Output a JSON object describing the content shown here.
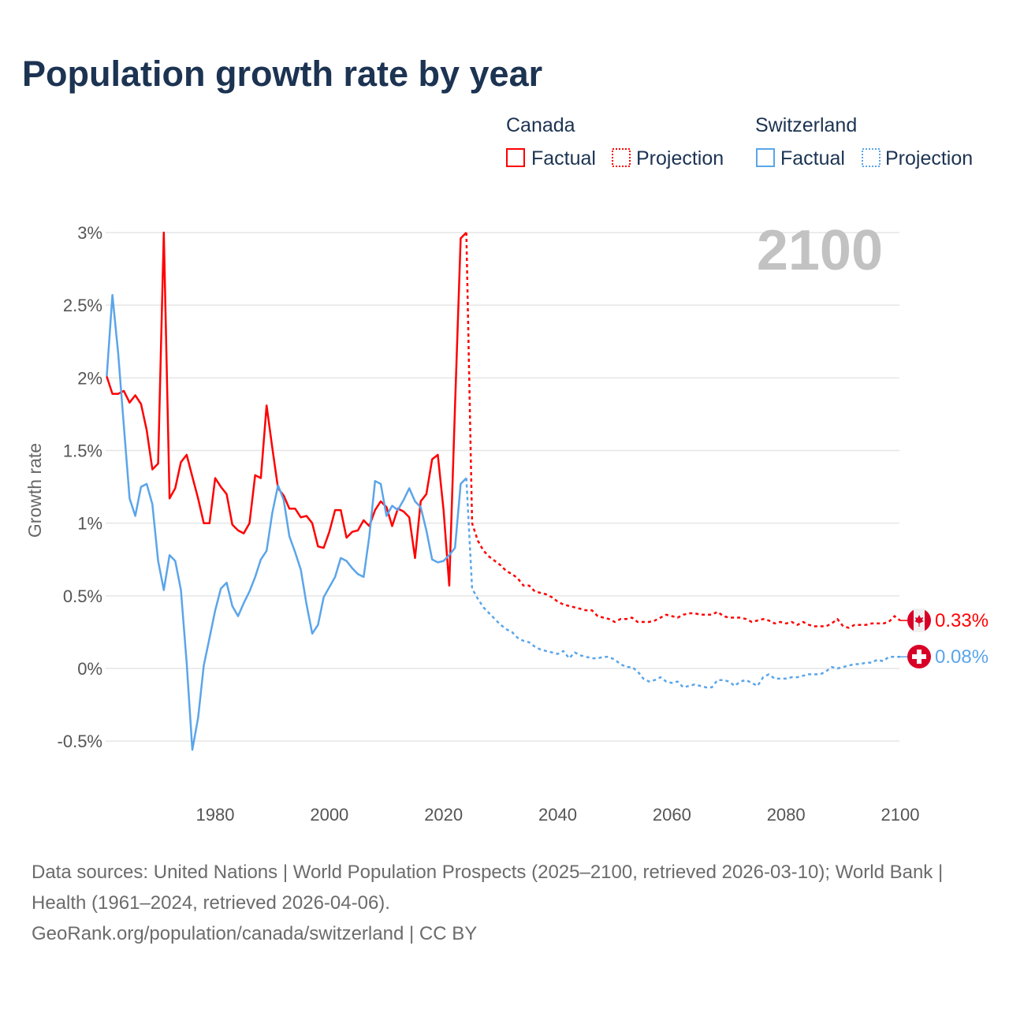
{
  "title": "Population growth rate by year",
  "legend": {
    "groups": [
      {
        "name": "Canada",
        "factual": "Factual",
        "projection": "Projection",
        "color": "#ff0000"
      },
      {
        "name": "Switzerland",
        "factual": "Factual",
        "projection": "Projection",
        "color": "#5aa5ea"
      }
    ]
  },
  "year_watermark": "2100",
  "end_labels": {
    "canada": "0.33%",
    "switzerland": "0.08%"
  },
  "footer": {
    "sources": "Data sources: United Nations | World Population Prospects (2025–2100, retrieved 2026-03-10); World Bank | Health (1961–2024, retrieved 2026-04-06).",
    "credit": "GeoRank.org/population/canada/switzerland | CC BY"
  },
  "chart_data": {
    "type": "line",
    "title": "Population growth rate by year",
    "xlabel": "",
    "ylabel": "Growth rate",
    "xlim": [
      1961,
      2100
    ],
    "ylim": [
      -0.6,
      3.0
    ],
    "xticks": [
      {
        "v": 1980,
        "label": "1980"
      },
      {
        "v": 2000,
        "label": "2000"
      },
      {
        "v": 2020,
        "label": "2020"
      },
      {
        "v": 2040,
        "label": "2040"
      },
      {
        "v": 2060,
        "label": "2060"
      },
      {
        "v": 2080,
        "label": "2080"
      },
      {
        "v": 2100,
        "label": "2100"
      }
    ],
    "yticks": [
      {
        "v": 3,
        "label": "3%"
      },
      {
        "v": 2.5,
        "label": "2.5%"
      },
      {
        "v": 2,
        "label": "2%"
      },
      {
        "v": 1.5,
        "label": "1.5%"
      },
      {
        "v": 1,
        "label": "1%"
      },
      {
        "v": 0.5,
        "label": "0.5%"
      },
      {
        "v": 0,
        "label": "0%"
      },
      {
        "v": -0.5,
        "label": "-0.5%"
      }
    ],
    "grid": true,
    "legend_position": "top-right",
    "series": [
      {
        "name": "Canada Factual",
        "color": "#ff0000",
        "dashed": false,
        "x_start": 1961,
        "values": [
          2.01,
          1.89,
          1.89,
          1.91,
          1.83,
          1.88,
          1.82,
          1.64,
          1.37,
          1.41,
          3.0,
          1.17,
          1.24,
          1.42,
          1.47,
          1.32,
          1.17,
          1.0,
          1.0,
          1.31,
          1.25,
          1.2,
          0.99,
          0.95,
          0.93,
          1.0,
          1.33,
          1.31,
          1.81,
          1.52,
          1.24,
          1.19,
          1.1,
          1.1,
          1.04,
          1.05,
          1.0,
          0.84,
          0.83,
          0.94,
          1.09,
          1.09,
          0.9,
          0.94,
          0.95,
          1.02,
          0.98,
          1.09,
          1.15,
          1.11,
          0.98,
          1.1,
          1.08,
          1.04,
          0.76,
          1.15,
          1.2,
          1.44,
          1.47,
          1.09,
          0.57,
          1.8,
          2.96,
          3.0
        ]
      },
      {
        "name": "Canada Projection",
        "color": "#ff0000",
        "dashed": true,
        "x_start": 2024,
        "values": [
          3.0,
          1.0,
          0.88,
          0.81,
          0.77,
          0.74,
          0.71,
          0.67,
          0.65,
          0.62,
          0.57,
          0.57,
          0.53,
          0.52,
          0.51,
          0.49,
          0.46,
          0.44,
          0.43,
          0.42,
          0.41,
          0.4,
          0.4,
          0.36,
          0.35,
          0.34,
          0.32,
          0.34,
          0.34,
          0.35,
          0.32,
          0.32,
          0.32,
          0.33,
          0.35,
          0.37,
          0.36,
          0.35,
          0.37,
          0.38,
          0.38,
          0.37,
          0.37,
          0.37,
          0.39,
          0.36,
          0.35,
          0.35,
          0.35,
          0.34,
          0.32,
          0.33,
          0.34,
          0.33,
          0.31,
          0.32,
          0.31,
          0.32,
          0.3,
          0.32,
          0.3,
          0.29,
          0.29,
          0.29,
          0.31,
          0.34,
          0.29,
          0.28,
          0.3,
          0.3,
          0.3,
          0.31,
          0.31,
          0.31,
          0.32,
          0.36,
          0.33
        ]
      },
      {
        "name": "Switzerland Factual",
        "color": "#5aa5ea",
        "dashed": false,
        "x_start": 1961,
        "values": [
          2.01,
          2.57,
          2.17,
          1.67,
          1.17,
          1.05,
          1.25,
          1.27,
          1.13,
          0.74,
          0.54,
          0.78,
          0.74,
          0.54,
          0.04,
          -0.56,
          -0.34,
          0.02,
          0.21,
          0.4,
          0.55,
          0.59,
          0.43,
          0.36,
          0.45,
          0.53,
          0.63,
          0.75,
          0.81,
          1.07,
          1.26,
          1.16,
          0.91,
          0.8,
          0.68,
          0.44,
          0.24,
          0.3,
          0.49,
          0.56,
          0.63,
          0.76,
          0.74,
          0.69,
          0.65,
          0.63,
          0.91,
          1.29,
          1.27,
          1.05,
          1.12,
          1.09,
          1.16,
          1.24,
          1.15,
          1.11,
          0.95,
          0.75,
          0.73,
          0.74,
          0.78,
          0.83,
          1.27,
          1.31
        ]
      },
      {
        "name": "Switzerland Projection",
        "color": "#5aa5ea",
        "dashed": true,
        "x_start": 2024,
        "values": [
          1.31,
          0.55,
          0.48,
          0.42,
          0.38,
          0.34,
          0.3,
          0.27,
          0.25,
          0.21,
          0.19,
          0.18,
          0.15,
          0.13,
          0.12,
          0.11,
          0.1,
          0.12,
          0.07,
          0.11,
          0.09,
          0.08,
          0.07,
          0.07,
          0.08,
          0.08,
          0.06,
          0.03,
          0.01,
          0.01,
          -0.02,
          -0.07,
          -0.09,
          -0.08,
          -0.06,
          -0.09,
          -0.1,
          -0.09,
          -0.13,
          -0.12,
          -0.11,
          -0.12,
          -0.13,
          -0.13,
          -0.08,
          -0.08,
          -0.09,
          -0.12,
          -0.09,
          -0.08,
          -0.1,
          -0.12,
          -0.06,
          -0.04,
          -0.07,
          -0.07,
          -0.07,
          -0.06,
          -0.06,
          -0.05,
          -0.04,
          -0.04,
          -0.04,
          -0.02,
          0.01,
          0.0,
          0.01,
          0.02,
          0.03,
          0.03,
          0.04,
          0.04,
          0.06,
          0.05,
          0.08,
          0.08,
          0.08
        ]
      }
    ]
  }
}
